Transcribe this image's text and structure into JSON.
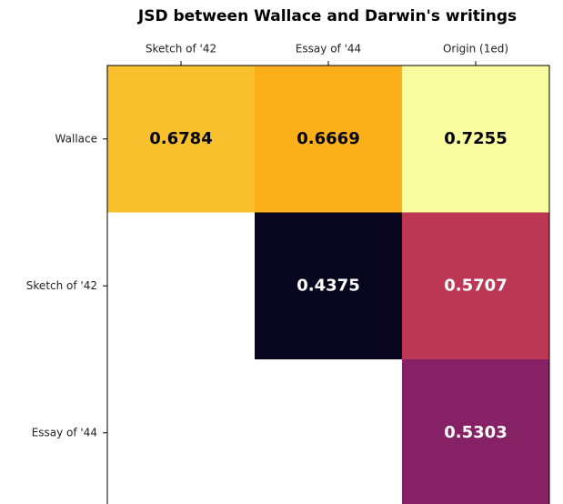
{
  "chart_data": {
    "type": "heatmap",
    "title": "JSD between Wallace and Darwin's writings",
    "x_categories": [
      "Sketch of '42",
      "Essay of '44",
      "Origin (1ed)"
    ],
    "y_categories": [
      "Wallace",
      "Sketch of '42",
      "Essay of '44"
    ],
    "values": [
      [
        0.6784,
        0.6669,
        0.7255
      ],
      [
        null,
        0.4375,
        0.5707
      ],
      [
        null,
        null,
        0.5303
      ]
    ],
    "colors": [
      [
        "#f8c02d",
        "#fbb01a",
        "#fafca0"
      ],
      [
        null,
        "#08061e",
        "#bb3754"
      ],
      [
        null,
        null,
        "#862166"
      ]
    ],
    "colormap": "inferno"
  }
}
